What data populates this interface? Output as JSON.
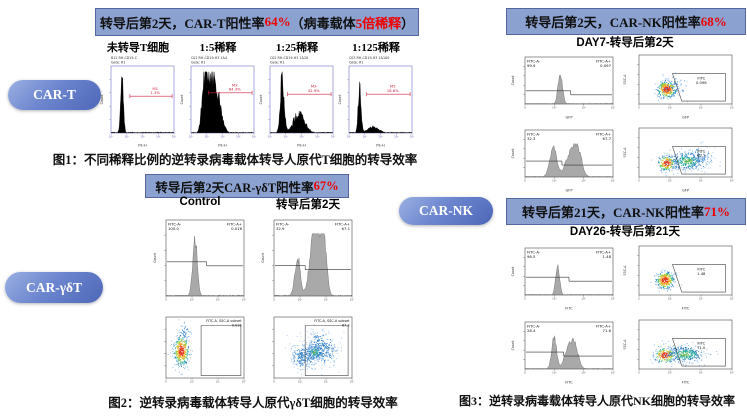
{
  "colors": {
    "banner_bg": "#8ba1cf",
    "banner_border": "#55659f",
    "accent_red": "#ee0000",
    "pill_blue_light": "#9ab0e2",
    "pill_blue_dark": "#4d67b8",
    "fig1_axis_blue": "#8585cf",
    "marker_red": "#d02040",
    "hist_black": "#000000",
    "hist_gray": "#a9a9a9"
  },
  "pills": {
    "car_t": "CAR-T",
    "car_gdt": "CAR-γδT",
    "car_nk": "CAR-NK"
  },
  "fig1": {
    "title": {
      "p1": "转导后第2天，CAR-T阳性率",
      "p2": "64%",
      "p3": "（病毒载体",
      "p4": "5倍稀释",
      "p5": "）"
    },
    "panel_labels": [
      "未转导T细胞",
      "1:5稀释",
      "1:25稀释",
      "1:125稀释"
    ],
    "caption": "图1：不同稀释比例的逆转录病毒载体转导人原代T细胞的转导效率"
  },
  "fig2": {
    "title": {
      "p1": "转导后第2天CAR-γδT阳性率",
      "p2": "67%"
    },
    "col_labels": [
      "Control",
      "转导后第2天"
    ],
    "caption": "图2：逆转录病毒载体转导人原代γδT细胞的转导效率"
  },
  "fig3": {
    "title_day7": {
      "p1": "转导后第2天，CAR-NK阳性率",
      "p2": "68%"
    },
    "subtitle_day7": "DAY7-转导后第2天",
    "title_day21": {
      "p1": "转导后第21天，CAR-NK阳性率",
      "p2": "71%"
    },
    "subtitle_day21": "DAY26-转导后第21天",
    "caption": "图3：逆转录病毒载体转导人原代NK细胞的转导效率"
  },
  "chart_data": [
    {
      "id": "f1p1",
      "type": "hist",
      "style": "t",
      "header": [
        "B12 RH-CD19-C",
        "Gate: R1"
      ],
      "xlabel": "PE-H",
      "ylabel": "Count",
      "xticks": [
        "10⁰",
        "10¹",
        "10²",
        "10³",
        "10⁴"
      ],
      "marker_label": "M1",
      "marker_pct": "1.3%",
      "marker": [
        0.3,
        0.97,
        0.45
      ],
      "peaks": [
        [
          0.17,
          0.022,
          0.95
        ]
      ]
    },
    {
      "id": "f1p2",
      "type": "hist",
      "style": "t",
      "header": [
        "C01 RH-CD19-H3 1&4",
        "Gate: R1"
      ],
      "xlabel": "PE-H",
      "ylabel": "Count",
      "xticks": [
        "10⁰",
        "10¹",
        "10²",
        "10³",
        "10⁴"
      ],
      "marker_label": "M3",
      "marker_pct": "64.3%",
      "marker": [
        0.28,
        0.97,
        0.4
      ],
      "peaks": [
        [
          0.21,
          0.04,
          0.9
        ],
        [
          0.29,
          0.05,
          0.5
        ],
        [
          0.39,
          0.075,
          0.8
        ]
      ]
    },
    {
      "id": "f1p3",
      "type": "hist",
      "style": "t",
      "header": [
        "C02 RH-CD19-H3 1&20",
        "Gate: R1"
      ],
      "xlabel": "PE-H",
      "ylabel": "Count",
      "xticks": [
        "10⁰",
        "10¹",
        "10²",
        "10³",
        "10⁴"
      ],
      "marker_label": "M3",
      "marker_pct": "42.9%",
      "marker": [
        0.28,
        0.97,
        0.42
      ],
      "peaks": [
        [
          0.19,
          0.03,
          0.95
        ],
        [
          0.46,
          0.09,
          0.32
        ]
      ]
    },
    {
      "id": "f1p4",
      "type": "hist",
      "style": "t",
      "header": [
        "C03 RH-CD19-H3 1&100",
        "Gate: R1"
      ],
      "xlabel": "PE-H",
      "ylabel": "Count",
      "xticks": [
        "10⁰",
        "10¹",
        "10²",
        "10³",
        "10⁴"
      ],
      "marker_label": "M3",
      "marker_pct": "18.6%",
      "marker": [
        0.28,
        0.97,
        0.42
      ],
      "peaks": [
        [
          0.165,
          0.022,
          0.85
        ],
        [
          0.38,
          0.09,
          0.1
        ]
      ]
    },
    {
      "id": "f2h1",
      "type": "hist",
      "style": "gdh",
      "ann_neg": [
        "FITC-A-",
        "100.0"
      ],
      "ann_pos": [
        "FITC-A+",
        "0.016"
      ],
      "ylabel": "Count",
      "xticks": [
        "0",
        "10³",
        "10⁴",
        "10⁵"
      ],
      "bracket": [
        0.52,
        0.55
      ],
      "peaks": [
        [
          0.37,
          0.03,
          0.93
        ]
      ]
    },
    {
      "id": "f2h2",
      "type": "hist",
      "style": "gdh",
      "ann_neg": [
        "FITC-A-",
        "32.9"
      ],
      "ann_pos": [
        "FITC-A+",
        "67.1"
      ],
      "ylabel": "Count",
      "xticks": [
        "0",
        "10³",
        "10⁴",
        "10⁵"
      ],
      "bracket": [
        0.4,
        0.6
      ],
      "peaks": [
        [
          0.3,
          0.035,
          0.62
        ],
        [
          0.5,
          0.05,
          0.8
        ],
        [
          0.58,
          0.05,
          0.82
        ],
        [
          0.65,
          0.035,
          0.6
        ]
      ]
    },
    {
      "id": "f2s1",
      "type": "scatter",
      "style": "gds",
      "label": [
        "FITC-A, SSC-A subset",
        "0.016"
      ],
      "xticks": [
        "0",
        "10³",
        "10⁴",
        "10⁵"
      ],
      "gate": [
        [
          0.45,
          0.04
        ],
        [
          0.96,
          0.04
        ],
        [
          0.96,
          0.86
        ],
        [
          0.45,
          0.86
        ]
      ],
      "clusters": [
        {
          "cx": 0.2,
          "cy": 0.45,
          "sx": 0.05,
          "sy": 0.13,
          "n": 380,
          "mode": "hot"
        },
        {
          "cx": 0.24,
          "cy": 0.75,
          "sx": 0.04,
          "sy": 0.08,
          "n": 40,
          "mode": "cool"
        }
      ]
    },
    {
      "id": "f2s2",
      "type": "scatter",
      "style": "gds",
      "label": [
        "FITC-A, SSC-A subset",
        "67.3"
      ],
      "xticks": [
        "0",
        "10³",
        "10⁴",
        "10⁵"
      ],
      "gate": [
        [
          0.4,
          0.04
        ],
        [
          0.95,
          0.04
        ],
        [
          0.95,
          0.86
        ],
        [
          0.4,
          0.86
        ]
      ],
      "clusters": [
        {
          "cx": 0.38,
          "cy": 0.35,
          "sx": 0.08,
          "sy": 0.1,
          "n": 250,
          "mode": "cool"
        },
        {
          "cx": 0.6,
          "cy": 0.48,
          "sx": 0.11,
          "sy": 0.14,
          "n": 350,
          "mode": "cool"
        },
        {
          "cx": 0.52,
          "cy": 0.42,
          "sx": 0.05,
          "sy": 0.06,
          "n": 90,
          "mode": "warm"
        }
      ]
    },
    {
      "id": "f3a1",
      "type": "hist",
      "style": "nkh",
      "ann_neg": [
        "FITC-A-",
        "99.9"
      ],
      "ann_pos": [
        "FITC-A+",
        "0.097"
      ],
      "xlabel": "GFP",
      "ylabel": "Count",
      "xticks": [
        "0",
        "10³",
        "10⁴",
        "10⁵"
      ],
      "bracket": [
        0.52,
        0.72
      ],
      "peaks": [
        [
          0.4,
          0.025,
          0.93
        ]
      ]
    },
    {
      "id": "f3a2",
      "type": "scatter",
      "style": "nks",
      "label": [
        "FITC",
        "0.096"
      ],
      "xlabel": "GFP",
      "ylabel": "SSC-A",
      "xticks": [
        "0",
        "10³",
        "10⁴",
        "10⁵"
      ],
      "gate": [
        [
          0.46,
          0.06
        ],
        [
          0.93,
          0.06
        ],
        [
          0.93,
          0.62
        ],
        [
          0.36,
          0.62
        ]
      ],
      "clusters": [
        {
          "cx": 0.3,
          "cy": 0.3,
          "sx": 0.055,
          "sy": 0.09,
          "n": 320,
          "mode": "hot"
        },
        {
          "cx": 0.38,
          "cy": 0.35,
          "sx": 0.09,
          "sy": 0.12,
          "n": 60,
          "mode": "cool"
        }
      ]
    },
    {
      "id": "f3a3",
      "type": "hist",
      "style": "nkh",
      "ann_neg": [
        "FITC-A-",
        "32.3"
      ],
      "ann_pos": [
        "FITC-A+",
        "67.7"
      ],
      "xlabel": "GFP",
      "ylabel": "Count",
      "xticks": [
        "0",
        "10³",
        "10⁴",
        "10⁵"
      ],
      "bracket": [
        0.42,
        0.66
      ],
      "peaks": [
        [
          0.32,
          0.04,
          0.85
        ],
        [
          0.52,
          0.06,
          0.7
        ],
        [
          0.6,
          0.045,
          0.72
        ]
      ]
    },
    {
      "id": "f3a4",
      "type": "scatter",
      "style": "nks",
      "label": [
        "FITC",
        "67.7"
      ],
      "xlabel": "GFP",
      "ylabel": "SSC-A",
      "xticks": [
        "0",
        "10³",
        "10⁴",
        "10⁵"
      ],
      "gate": [
        [
          0.46,
          0.06
        ],
        [
          0.93,
          0.06
        ],
        [
          0.93,
          0.62
        ],
        [
          0.36,
          0.62
        ]
      ],
      "clusters": [
        {
          "cx": 0.3,
          "cy": 0.28,
          "sx": 0.05,
          "sy": 0.08,
          "n": 200,
          "mode": "hot"
        },
        {
          "cx": 0.52,
          "cy": 0.32,
          "sx": 0.1,
          "sy": 0.1,
          "n": 320,
          "mode": "warm"
        },
        {
          "cx": 0.65,
          "cy": 0.4,
          "sx": 0.08,
          "sy": 0.12,
          "n": 80,
          "mode": "cool"
        }
      ]
    },
    {
      "id": "f3b1",
      "type": "hist",
      "style": "nkh",
      "ann_neg": [
        "FITC-A-",
        "98.5"
      ],
      "ann_pos": [
        "FITC-A+",
        "1.48"
      ],
      "xlabel": "FITC",
      "ylabel": "Count",
      "xticks": [
        "0",
        "10³",
        "10⁴",
        "10⁵"
      ],
      "bracket": [
        0.5,
        0.62
      ],
      "peaks": [
        [
          0.37,
          0.022,
          0.93
        ]
      ]
    },
    {
      "id": "f3b2",
      "type": "scatter",
      "style": "nks",
      "label": [
        "FITC",
        "1.48"
      ],
      "xlabel": "FITC",
      "ylabel": "SSC-A",
      "xticks": [
        "0",
        "10³",
        "10⁴",
        "10⁵"
      ],
      "gate": [
        [
          0.46,
          0.06
        ],
        [
          0.93,
          0.06
        ],
        [
          0.93,
          0.62
        ],
        [
          0.36,
          0.62
        ]
      ],
      "clusters": [
        {
          "cx": 0.28,
          "cy": 0.3,
          "sx": 0.05,
          "sy": 0.09,
          "n": 320,
          "mode": "hot"
        }
      ]
    },
    {
      "id": "f3b3",
      "type": "hist",
      "style": "nkh",
      "ann_neg": [
        "FITC-A-",
        "28.4"
      ],
      "ann_pos": [
        "FITC-A+",
        "71.6"
      ],
      "xlabel": "FITC",
      "ylabel": "Count",
      "xticks": [
        "0",
        "10³",
        "10⁴",
        "10⁵"
      ],
      "bracket": [
        0.44,
        0.64
      ],
      "peaks": [
        [
          0.33,
          0.028,
          0.95
        ],
        [
          0.5,
          0.05,
          0.62
        ],
        [
          0.57,
          0.04,
          0.55
        ]
      ]
    },
    {
      "id": "f3b4",
      "type": "scatter",
      "style": "nks",
      "label": [
        "FITC",
        "71.0"
      ],
      "xlabel": "FITC",
      "ylabel": "SSC-A",
      "xticks": [
        "0",
        "10³",
        "10⁴",
        "10⁵"
      ],
      "gate": [
        [
          0.46,
          0.06
        ],
        [
          0.93,
          0.06
        ],
        [
          0.93,
          0.62
        ],
        [
          0.36,
          0.62
        ]
      ],
      "clusters": [
        {
          "cx": 0.28,
          "cy": 0.28,
          "sx": 0.06,
          "sy": 0.08,
          "n": 220,
          "mode": "hot"
        },
        {
          "cx": 0.5,
          "cy": 0.3,
          "sx": 0.11,
          "sy": 0.09,
          "n": 330,
          "mode": "warm"
        }
      ]
    }
  ]
}
